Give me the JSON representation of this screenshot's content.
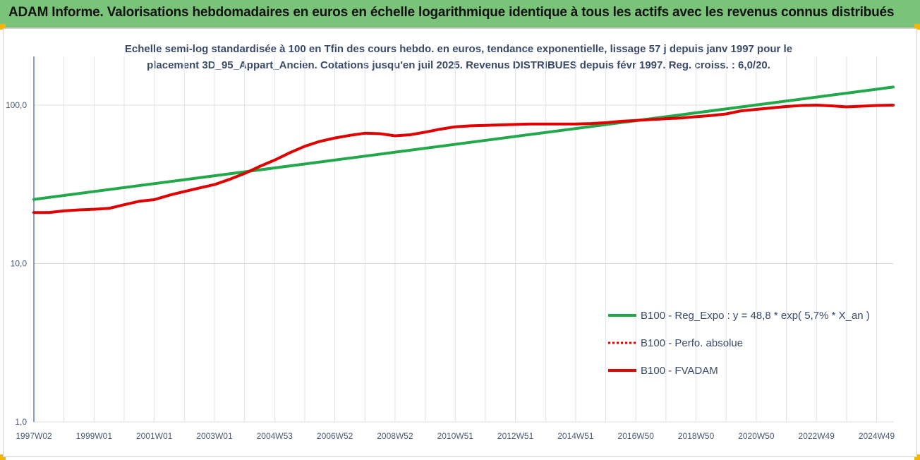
{
  "header": {
    "title": "ADAM Informe. Valorisations hebdomadaires en euros en échelle logarithmique identique à tous les actifs avec les revenus connus distribués",
    "bg_color": "#7ac47a",
    "corner_color": "#f2b705"
  },
  "chart_data": {
    "type": "line",
    "title_line1": "Echelle semi-log standardisée à 100 en Tfin des cours hebdo. en euros, tendance exponentielle, lissage 57 j depuis janv 1997 pour le",
    "title_line2": "placement 3D_95_Appart_Ancien. Cotations jusqu'en juil 2025. Revenus DISTRIBUES depuis févr 1997. Reg. croiss. : 6,0/20.",
    "yscale": "log",
    "ylim": [
      1,
      200
    ],
    "yticks": [
      {
        "value": 1,
        "label": "1,0"
      },
      {
        "value": 10,
        "label": "10,0"
      },
      {
        "value": 100,
        "label": "100,0"
      }
    ],
    "xlim": [
      1997.0,
      2025.55
    ],
    "xticks": [
      {
        "x": 1997.0,
        "label": "1997W02"
      },
      {
        "x": 1999.0,
        "label": "1999W01"
      },
      {
        "x": 2001.0,
        "label": "2001W01"
      },
      {
        "x": 2003.0,
        "label": "2003W01"
      },
      {
        "x": 2005.0,
        "label": "2004W53"
      },
      {
        "x": 2007.0,
        "label": "2006W52"
      },
      {
        "x": 2009.0,
        "label": "2008W52"
      },
      {
        "x": 2011.0,
        "label": "2010W51"
      },
      {
        "x": 2013.0,
        "label": "2012W51"
      },
      {
        "x": 2015.0,
        "label": "2014W51"
      },
      {
        "x": 2017.0,
        "label": "2016W50"
      },
      {
        "x": 2019.0,
        "label": "2018W50"
      },
      {
        "x": 2021.0,
        "label": "2020W50"
      },
      {
        "x": 2023.0,
        "label": "2022W49"
      },
      {
        "x": 2025.0,
        "label": "2024W49"
      }
    ],
    "grid": "vertical",
    "legend_position": "bottom-right",
    "series": [
      {
        "name": "B100 - Reg_Expo : y = 48,8 * exp( 5,7% *  X_an )",
        "color": "#22a84a",
        "style": "solid",
        "points": [
          [
            1997.0,
            25.4
          ],
          [
            2025.55,
            130.0
          ]
        ]
      },
      {
        "name": "B100 - Perfo. absolue",
        "color": "#e00000",
        "style": "dotted",
        "points": []
      },
      {
        "name": "B100 - FVADAM",
        "color": "#e00000",
        "style": "solid",
        "points": [
          [
            1997.0,
            21.0
          ],
          [
            1997.5,
            21.0
          ],
          [
            1998.0,
            21.5
          ],
          [
            1998.5,
            21.8
          ],
          [
            1999.0,
            22.0
          ],
          [
            1999.5,
            22.3
          ],
          [
            2000.0,
            23.5
          ],
          [
            2000.5,
            24.7
          ],
          [
            2001.0,
            25.3
          ],
          [
            2001.5,
            27.0
          ],
          [
            2002.0,
            28.5
          ],
          [
            2002.5,
            30.0
          ],
          [
            2003.0,
            31.5
          ],
          [
            2003.5,
            34.0
          ],
          [
            2004.0,
            37.0
          ],
          [
            2004.5,
            41.0
          ],
          [
            2005.0,
            45.0
          ],
          [
            2005.5,
            50.0
          ],
          [
            2006.0,
            55.0
          ],
          [
            2006.5,
            59.0
          ],
          [
            2007.0,
            62.0
          ],
          [
            2007.5,
            64.5
          ],
          [
            2008.0,
            66.5
          ],
          [
            2008.5,
            66.0
          ],
          [
            2009.0,
            64.0
          ],
          [
            2009.5,
            65.0
          ],
          [
            2010.0,
            67.5
          ],
          [
            2010.5,
            70.5
          ],
          [
            2011.0,
            73.0
          ],
          [
            2011.5,
            74.0
          ],
          [
            2012.0,
            74.5
          ],
          [
            2012.5,
            75.0
          ],
          [
            2013.0,
            75.5
          ],
          [
            2013.5,
            76.0
          ],
          [
            2014.0,
            76.0
          ],
          [
            2014.5,
            76.0
          ],
          [
            2015.0,
            76.0
          ],
          [
            2015.5,
            76.5
          ],
          [
            2016.0,
            77.5
          ],
          [
            2016.5,
            79.0
          ],
          [
            2017.0,
            80.0
          ],
          [
            2017.5,
            81.0
          ],
          [
            2018.0,
            82.0
          ],
          [
            2018.5,
            83.0
          ],
          [
            2019.0,
            84.5
          ],
          [
            2019.5,
            86.0
          ],
          [
            2020.0,
            88.0
          ],
          [
            2020.5,
            92.0
          ],
          [
            2021.0,
            94.0
          ],
          [
            2021.5,
            96.0
          ],
          [
            2022.0,
            98.0
          ],
          [
            2022.5,
            99.5
          ],
          [
            2023.0,
            100.0
          ],
          [
            2023.5,
            99.0
          ],
          [
            2024.0,
            97.5
          ],
          [
            2024.5,
            98.5
          ],
          [
            2025.0,
            99.5
          ],
          [
            2025.55,
            100.0
          ]
        ]
      }
    ]
  }
}
